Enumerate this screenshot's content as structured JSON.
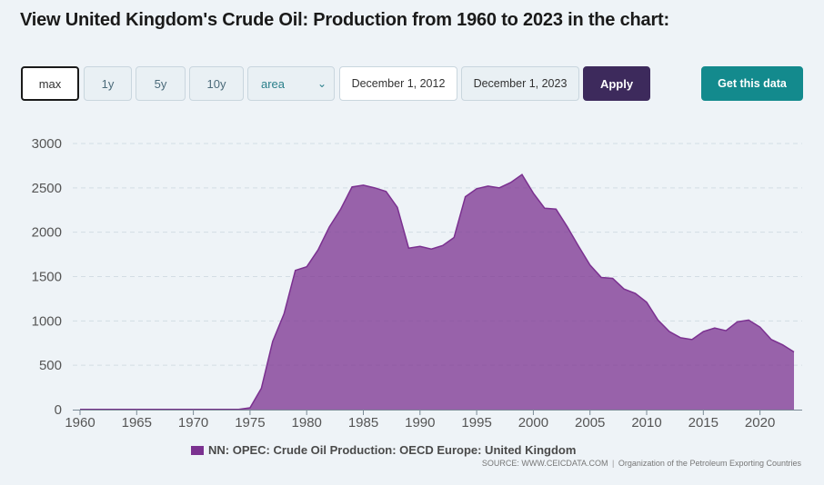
{
  "title": "View United Kingdom's Crude Oil: Production from 1960 to 2023 in the chart:",
  "controls": {
    "range_buttons": [
      "max",
      "1y",
      "5y",
      "10y"
    ],
    "chart_type_selected": "area",
    "date_start": "December 1, 2012",
    "date_end": "December 1, 2023",
    "apply_label": "Apply",
    "get_data_label": "Get this data"
  },
  "colors": {
    "series": "#7b3190",
    "apply": "#3d2a5c",
    "get_data": "#138a8d"
  },
  "legend": {
    "label": "NN: OPEC: Crude Oil Production: OECD Europe: United Kingdom"
  },
  "source": {
    "link": "SOURCE: WWW.CEICDATA.COM",
    "org": "Organization of the Petroleum Exporting Countries"
  },
  "chart_data": {
    "type": "area",
    "x": [
      1960,
      1961,
      1962,
      1963,
      1964,
      1965,
      1966,
      1967,
      1968,
      1969,
      1970,
      1971,
      1972,
      1973,
      1974,
      1975,
      1976,
      1977,
      1978,
      1979,
      1980,
      1981,
      1982,
      1983,
      1984,
      1985,
      1986,
      1987,
      1988,
      1989,
      1990,
      1991,
      1992,
      1993,
      1994,
      1995,
      1996,
      1997,
      1998,
      1999,
      2000,
      2001,
      2002,
      2003,
      2004,
      2005,
      2006,
      2007,
      2008,
      2009,
      2010,
      2011,
      2012,
      2013,
      2014,
      2015,
      2016,
      2017,
      2018,
      2019,
      2020,
      2021,
      2022,
      2023
    ],
    "series": [
      {
        "name": "NN: OPEC: Crude Oil Production: OECD Europe: United Kingdom",
        "values": [
          2,
          2,
          2,
          2,
          2,
          2,
          2,
          2,
          2,
          2,
          2,
          2,
          2,
          2,
          2,
          20,
          240,
          770,
          1080,
          1570,
          1610,
          1800,
          2060,
          2260,
          2510,
          2530,
          2500,
          2460,
          2280,
          1820,
          1840,
          1810,
          1850,
          1940,
          2400,
          2490,
          2520,
          2500,
          2560,
          2650,
          2440,
          2270,
          2260,
          2060,
          1840,
          1630,
          1490,
          1480,
          1360,
          1310,
          1210,
          1010,
          880,
          810,
          790,
          880,
          920,
          890,
          990,
          1010,
          930,
          790,
          730,
          650
        ]
      }
    ],
    "ylim": [
      0,
      3000
    ],
    "yticks": [
      0,
      500,
      1000,
      1500,
      2000,
      2500,
      3000
    ],
    "xticks": [
      1960,
      1965,
      1970,
      1975,
      1980,
      1985,
      1990,
      1995,
      2000,
      2005,
      2010,
      2015,
      2020
    ],
    "grid": "horizontal dashed",
    "legend_position": "bottom"
  }
}
